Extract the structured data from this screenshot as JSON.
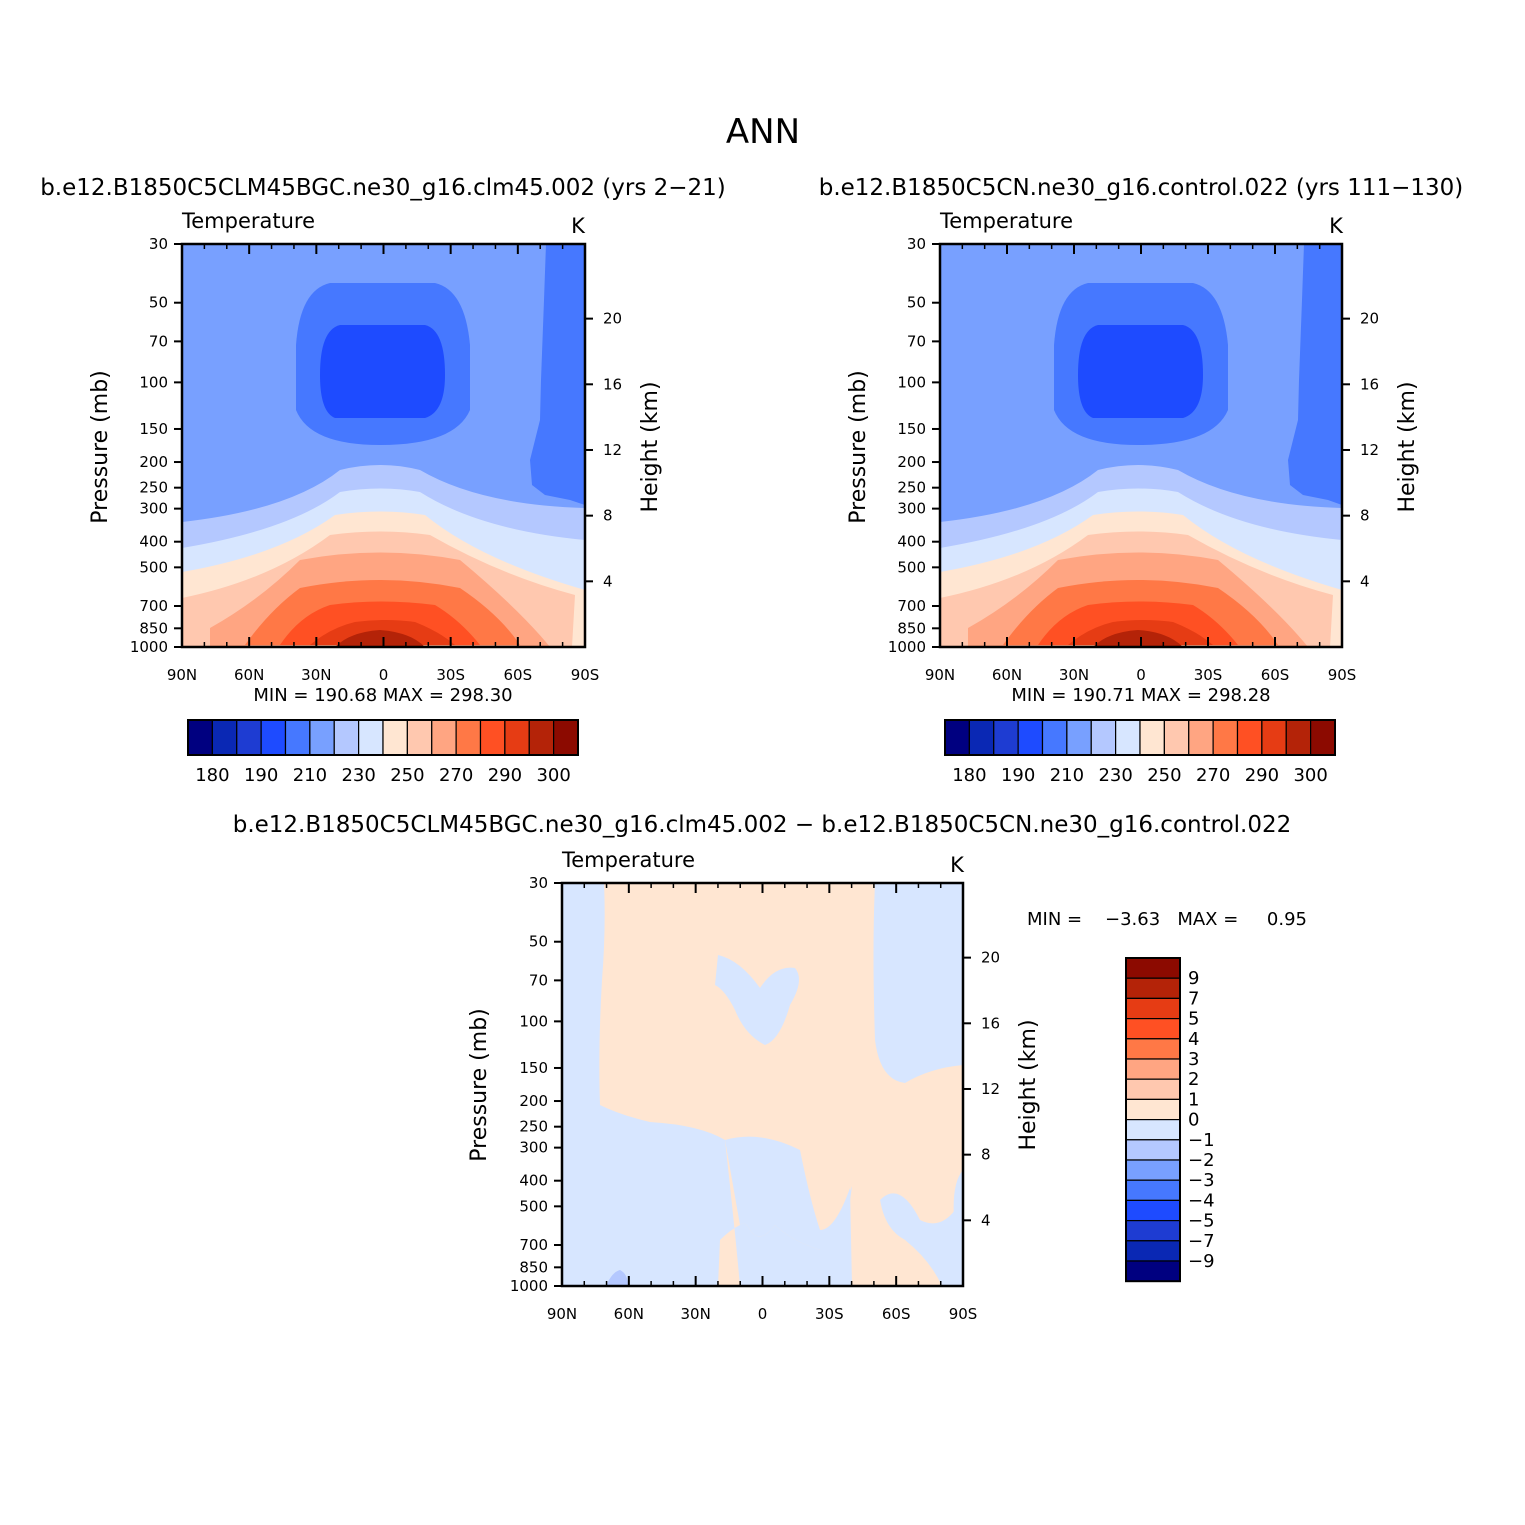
{
  "figure": {
    "title": "ANN",
    "diff_title": "b.e12.B1850C5CLM45BGC.ne30_g16.clm45.002 − b.e12.B1850C5CN.ne30_g16.control.022"
  },
  "panels": [
    {
      "case_title": "b.e12.B1850C5CLM45BGC.ne30_g16.clm45.002 (yrs 2−21)",
      "left_label": "Temperature",
      "units": "K",
      "stats": "MIN =  190.68   MAX =  298.30"
    },
    {
      "case_title": "b.e12.B1850C5CN.ne30_g16.control.022 (yrs 111−130)",
      "left_label": "Temperature",
      "units": "K",
      "stats": "MIN =  190.71   MAX =  298.28"
    },
    {
      "case_title": "",
      "left_label": "Temperature",
      "units": "K",
      "stats": "MIN =    −3.63   MAX =     0.95"
    }
  ],
  "chart_data": [
    {
      "type": "heatmap",
      "title": "b.e12.B1850C5CLM45BGC.ne30_g16.clm45.002 (yrs 2−21)",
      "field": "Temperature",
      "units": "K",
      "xlabel": "",
      "ylabel": "Pressure (mb)",
      "y2label": "Height (km)",
      "x_ticks": [
        "90N",
        "60N",
        "30N",
        "0",
        "30S",
        "60S",
        "90S"
      ],
      "y_ticks": [
        "30",
        "50",
        "70",
        "100",
        "150",
        "200",
        "250",
        "300",
        "400",
        "500",
        "700",
        "850",
        "1000"
      ],
      "y2_ticks": [
        "4",
        "8",
        "12",
        "16",
        "20"
      ],
      "ylim": [
        1000,
        30
      ],
      "y_scale": "log",
      "min": 190.68,
      "max": 298.3,
      "colorbar": {
        "labels": [
          "180",
          "190",
          "210",
          "230",
          "250",
          "270",
          "290",
          "300"
        ]
      },
      "grid": false
    },
    {
      "type": "heatmap",
      "title": "b.e12.B1850C5CN.ne30_g16.control.022 (yrs 111−130)",
      "field": "Temperature",
      "units": "K",
      "xlabel": "",
      "ylabel": "Pressure (mb)",
      "y2label": "Height (km)",
      "x_ticks": [
        "90N",
        "60N",
        "30N",
        "0",
        "30S",
        "60S",
        "90S"
      ],
      "y_ticks": [
        "30",
        "50",
        "70",
        "100",
        "150",
        "200",
        "250",
        "300",
        "400",
        "500",
        "700",
        "850",
        "1000"
      ],
      "y2_ticks": [
        "4",
        "8",
        "12",
        "16",
        "20"
      ],
      "ylim": [
        1000,
        30
      ],
      "y_scale": "log",
      "min": 190.71,
      "max": 298.28,
      "colorbar": {
        "labels": [
          "180",
          "190",
          "210",
          "230",
          "250",
          "270",
          "290",
          "300"
        ]
      },
      "grid": false
    },
    {
      "type": "heatmap",
      "title": "b.e12.B1850C5CLM45BGC.ne30_g16.clm45.002 − b.e12.B1850C5CN.ne30_g16.control.022",
      "field": "Temperature",
      "units": "K",
      "xlabel": "",
      "ylabel": "Pressure (mb)",
      "y2label": "Height (km)",
      "x_ticks": [
        "90N",
        "60N",
        "30N",
        "0",
        "30S",
        "60S",
        "90S"
      ],
      "y_ticks": [
        "30",
        "50",
        "70",
        "100",
        "150",
        "200",
        "250",
        "300",
        "400",
        "500",
        "700",
        "850",
        "1000"
      ],
      "y2_ticks": [
        "4",
        "8",
        "12",
        "16",
        "20"
      ],
      "ylim": [
        1000,
        30
      ],
      "y_scale": "log",
      "min": -3.63,
      "max": 0.95,
      "colorbar": {
        "labels": [
          "9",
          "7",
          "5",
          "4",
          "3",
          "2",
          "1",
          "0",
          "−1",
          "−2",
          "−3",
          "−4",
          "−5",
          "−7",
          "−9"
        ]
      },
      "grid": false
    }
  ],
  "colors": {
    "abs_scale": [
      "#000080",
      "#0a28b4",
      "#1e3cd2",
      "#1e4bff",
      "#4678ff",
      "#78a0ff",
      "#b4c8ff",
      "#d7e6ff",
      "#ffe6d2",
      "#ffc8af",
      "#ffa582",
      "#ff7846",
      "#ff5023",
      "#e63c14",
      "#b42308",
      "#8c0a00"
    ],
    "diff_scale": [
      "#8c0a00",
      "#b42308",
      "#e63c14",
      "#ff5023",
      "#ff7846",
      "#ffa582",
      "#ffc8af",
      "#ffe6d2",
      "#d7e6ff",
      "#b4c8ff",
      "#78a0ff",
      "#4678ff",
      "#1e4bff",
      "#1e3cd2",
      "#0a28b4",
      "#000080"
    ]
  }
}
